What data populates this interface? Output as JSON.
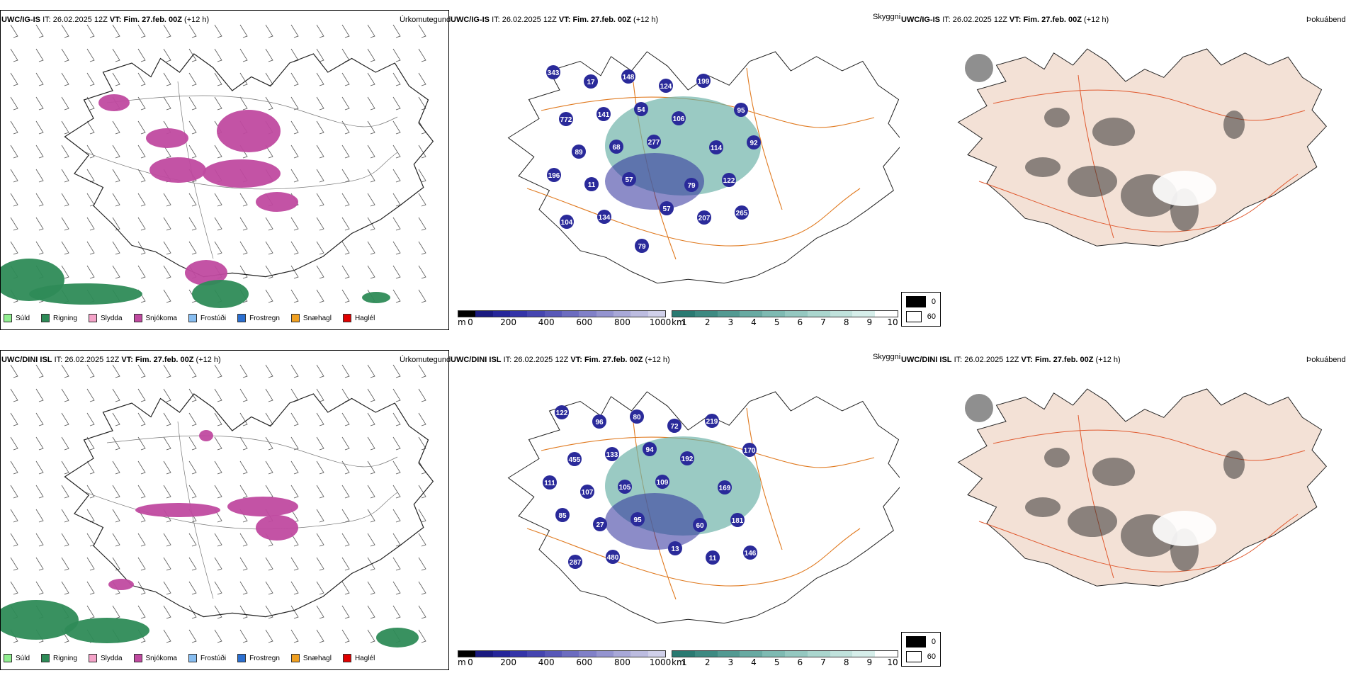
{
  "rows": [
    {
      "model": "UWC/IG-IS",
      "it_label": "IT:",
      "it_value": "26.02.2025 12Z",
      "vt_label": "VT:",
      "vt_value": "Fim. 27.feb. 00Z",
      "lead": "(+12 h)",
      "precip_name": "Úrkomutegund",
      "vis_name": "Skyggni",
      "cloud_name": "Þokuábendi",
      "vis_values": [
        "343",
        "17",
        "148",
        "124",
        "199",
        "95",
        "772",
        "141",
        "54",
        "106",
        "114",
        "92",
        "89",
        "68",
        "277",
        "79",
        "122",
        "196",
        "11",
        "57",
        "57",
        "207",
        "265",
        "104",
        "134",
        "79"
      ]
    },
    {
      "model": "UWC/DINI ISL",
      "it_label": "IT:",
      "it_value": "26.02.2025 12Z",
      "vt_label": "VT:",
      "vt_value": "Fim. 27.feb. 00Z",
      "lead": "(+12 h)",
      "precip_name": "Úrkomutegund",
      "vis_name": "Skyggni",
      "cloud_name": "Þokuábendi",
      "vis_values": [
        "122",
        "96",
        "80",
        "72",
        "219",
        "170",
        "455",
        "133",
        "94",
        "192",
        "169",
        "111",
        "107",
        "105",
        "109",
        "60",
        "181",
        "85",
        "27",
        "95",
        "13",
        "11",
        "146",
        "287",
        "480"
      ]
    }
  ],
  "precip_legend": [
    {
      "label": "Súld",
      "color": "#90ee90"
    },
    {
      "label": "Rigning",
      "color": "#2e8b57"
    },
    {
      "label": "Slydda",
      "color": "#f4a3c8"
    },
    {
      "label": "Snjókoma",
      "color": "#c04aa0"
    },
    {
      "label": "Frostúði",
      "color": "#87bdf0"
    },
    {
      "label": "Frostregn",
      "color": "#2b6fd0"
    },
    {
      "label": "Snæhagl",
      "color": "#f0a020"
    },
    {
      "label": "Haglél",
      "color": "#e00000"
    }
  ],
  "vis_scale_m": {
    "unit": "m",
    "ticks": [
      "0",
      "200",
      "400",
      "600",
      "800",
      "1000"
    ],
    "colors": [
      "#000000",
      "#1a1a80",
      "#26269a",
      "#3434a8",
      "#4545b0",
      "#5858b8",
      "#6c6cc0",
      "#8080c8",
      "#9494d0",
      "#a8a8d8",
      "#bcbce0",
      "#d0d0ea"
    ]
  },
  "vis_scale_km": {
    "unit": "km",
    "ticks": [
      "1",
      "2",
      "3",
      "4",
      "5",
      "6",
      "7",
      "8",
      "9",
      "10"
    ],
    "colors": [
      "#2a7a72",
      "#3d8a82",
      "#529a92",
      "#68aaa2",
      "#7ebab2",
      "#94c8c0",
      "#aad6ce",
      "#c0e2dc",
      "#d6eeea",
      "#ffffff"
    ]
  },
  "cloud_scale": {
    "values": [
      "0",
      "60"
    ],
    "colors": [
      "#000000",
      "#ffffff"
    ]
  }
}
